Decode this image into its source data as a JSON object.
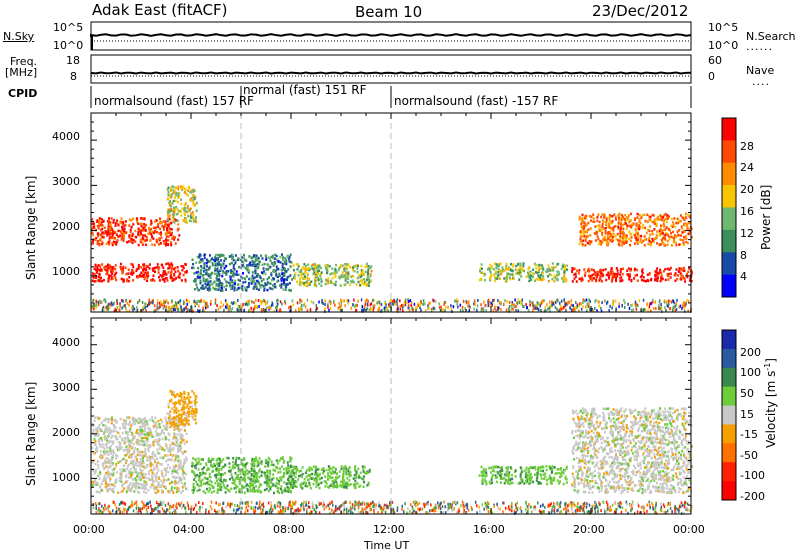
{
  "header": {
    "station": "Adak East (fitACF)",
    "beam": "Beam 10",
    "date": "23/Dec/2012"
  },
  "strip": {
    "nsky_label": "N.Sky",
    "nsky_ticks": [
      "10^5",
      "10^0"
    ],
    "nsearch_label": "N.Search",
    "nsearch_ticks": [
      "10^5",
      "10^0"
    ],
    "freq_label": "Freq.",
    "freq_unit": "[MHz]",
    "freq_ticks": [
      "18",
      "8"
    ],
    "nave_label": "Nave",
    "nave_ticks": [
      "60",
      "0"
    ],
    "cpid_label": "CPID"
  },
  "cpid_segments": [
    {
      "label": "normalsound (fast) 157 RF",
      "start_h": 0,
      "end_h": 6
    },
    {
      "label": "normal (fast) 151 RF",
      "start_h": 6,
      "end_h": 12
    },
    {
      "label": "normalsound (fast) -157 RF",
      "start_h": 12,
      "end_h": 24
    }
  ],
  "axes": {
    "ylabel": "Slant Range [km]",
    "xlabel": "Time UT",
    "x_ticks": [
      "00:00",
      "04:00",
      "08:00",
      "12:00",
      "16:00",
      "20:00",
      "00:00"
    ],
    "y_ticks": [
      "1000",
      "2000",
      "3000",
      "4000"
    ]
  },
  "power_colorbar": {
    "label": "Power [dB]",
    "ticks": [
      "28",
      "24",
      "20",
      "16",
      "12",
      "8",
      "4"
    ],
    "colors": [
      "#ff0000",
      "#ff4a00",
      "#ff8c00",
      "#f7c600",
      "#6fb86f",
      "#3a8f5a",
      "#1a4aa8",
      "#0000ff"
    ]
  },
  "velocity_colorbar": {
    "label": "Velocity [m s",
    "label_sup": "-1",
    "label_end": "]",
    "ticks": [
      "200",
      "100",
      "50",
      "15",
      "-15",
      "-50",
      "-100",
      "-200"
    ],
    "colors": [
      "#1a2aa8",
      "#2a5aa0",
      "#3a8a50",
      "#6ccc3a",
      "#c8c8c8",
      "#f5a000",
      "#ff7000",
      "#ff2000",
      "#ff0000"
    ]
  },
  "chart_data": [
    {
      "type": "heatmap",
      "title": "Power",
      "xlabel": "Time UT",
      "ylabel": "Slant Range [km]",
      "xlim_hours": [
        0,
        24
      ],
      "ylim_km": [
        200,
        4600
      ],
      "value_range": [
        0,
        30
      ],
      "regions": [
        {
          "t0": 0.0,
          "t1": 3.8,
          "r0": 900,
          "r1": 1300,
          "value": 28
        },
        {
          "t0": 0.0,
          "t1": 3.5,
          "r0": 1700,
          "r1": 2300,
          "value": 26
        },
        {
          "t0": 3.0,
          "t1": 4.2,
          "r0": 2200,
          "r1": 3000,
          "value": 16
        },
        {
          "t0": 4.0,
          "t1": 8.0,
          "r0": 700,
          "r1": 1500,
          "value": 8
        },
        {
          "t0": 8.0,
          "t1": 11.2,
          "r0": 800,
          "r1": 1300,
          "value": 14
        },
        {
          "t0": 15.5,
          "t1": 19.0,
          "r0": 900,
          "r1": 1300,
          "value": 14
        },
        {
          "t0": 19.2,
          "t1": 24.0,
          "r0": 900,
          "r1": 1200,
          "value": 28
        },
        {
          "t0": 19.5,
          "t1": 24.0,
          "r0": 1700,
          "r1": 2400,
          "value": 22
        }
      ]
    },
    {
      "type": "heatmap",
      "title": "Velocity",
      "xlabel": "Time UT",
      "ylabel": "Slant Range [km]",
      "xlim_hours": [
        0,
        24
      ],
      "ylim_km": [
        200,
        4600
      ],
      "value_range": [
        -200,
        200
      ],
      "regions": [
        {
          "t0": 0.0,
          "t1": 3.8,
          "r0": 700,
          "r1": 2400,
          "value": 0
        },
        {
          "t0": 3.0,
          "t1": 4.2,
          "r0": 2200,
          "r1": 3000,
          "value": -30
        },
        {
          "t0": 4.0,
          "t1": 8.0,
          "r0": 700,
          "r1": 1500,
          "value": 40
        },
        {
          "t0": 8.0,
          "t1": 11.2,
          "r0": 800,
          "r1": 1300,
          "value": 40
        },
        {
          "t0": 15.5,
          "t1": 19.0,
          "r0": 900,
          "r1": 1300,
          "value": 40
        },
        {
          "t0": 19.2,
          "t1": 24.0,
          "r0": 700,
          "r1": 2600,
          "value": 0
        }
      ]
    }
  ]
}
